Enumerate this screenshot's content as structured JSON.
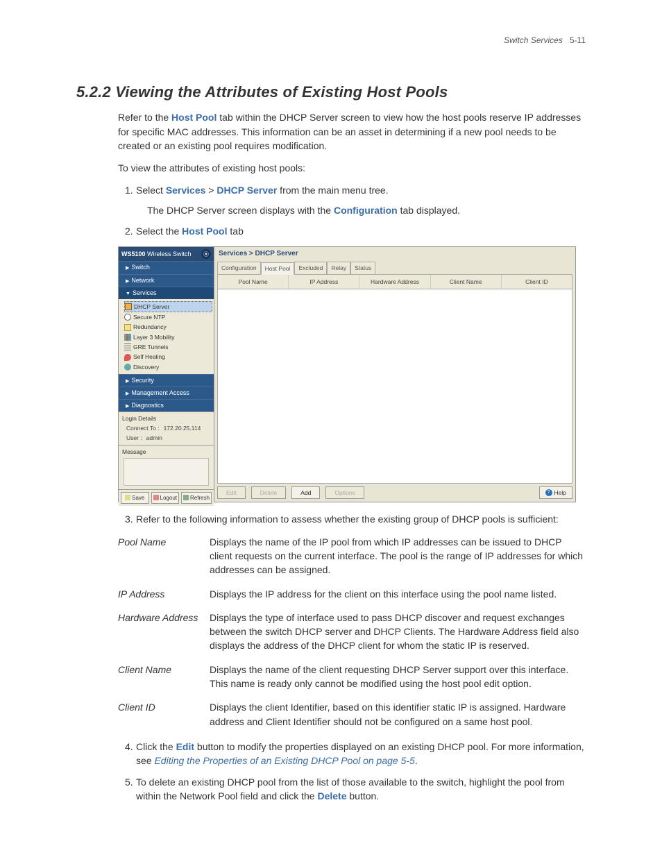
{
  "page_header": {
    "section": "Switch Services",
    "page": "5-11"
  },
  "heading": "5.2.2  Viewing the Attributes of Existing Host Pools",
  "intro": {
    "t1a": "Refer to the ",
    "host_pool": "Host Pool",
    "t1b": " tab within the DHCP Server screen to view how the host pools reserve IP addresses for specific MAC addresses. This information can be an asset in determining if a new pool needs to be created or an existing pool requires modification.",
    "t2": "To view the attributes of existing host pools:"
  },
  "step1": {
    "num": "1.",
    "a": "Select ",
    "services": "Services",
    "gt": " > ",
    "dhcp": "DHCP Server",
    "b": " from the main menu tree.",
    "sub_a": "The DHCP Server screen displays with the ",
    "config": "Configuration",
    "sub_b": " tab displayed."
  },
  "step2": {
    "num": "2.",
    "a": "Select the ",
    "host_pool": "Host Pool",
    "b": " tab"
  },
  "screenshot": {
    "title_prefix": "WS5100 ",
    "title_rest": "Wireless Switch",
    "nav": {
      "switch": "Switch",
      "network": "Network",
      "services": "Services",
      "security": "Security",
      "mgmt": "Management Access",
      "diag": "Diagnostics"
    },
    "tree": {
      "dhcp": "DHCP Server",
      "ntp": "Secure NTP",
      "redundancy": "Redundancy",
      "l3": "Layer 3 Mobility",
      "gre": "GRE Tunnels",
      "self": "Self Healing",
      "disc": "Discovery"
    },
    "login": {
      "title": "Login Details",
      "connect_lbl": "Connect To :",
      "connect_val": "172.20.25.114",
      "user_lbl": "User :",
      "user_val": "admin"
    },
    "message_lbl": "Message",
    "sb_btns": {
      "save": "Save",
      "logout": "Logout",
      "refresh": "Refresh"
    },
    "breadcrumb": "Services > DHCP Server",
    "tabs": {
      "config": "Configuration",
      "host": "Host Pool",
      "excl": "Excluded",
      "relay": "Relay",
      "status": "Status"
    },
    "columns": {
      "pool": "Pool Name",
      "ip": "IP Address",
      "hw": "Hardware Address",
      "client": "Client Name",
      "cid": "Client ID"
    },
    "bottom": {
      "edit": "Edit",
      "delete": "Delete",
      "add": "Add",
      "options": "Options",
      "help": "Help"
    }
  },
  "step3": {
    "num": "3.",
    "t": "Refer to the following information to assess whether the existing group of DHCP pools is sufficient:"
  },
  "defs": {
    "pool_name": {
      "term": "Pool Name",
      "desc": "Displays the name of the IP pool from which IP addresses can be issued to DHCP client requests on the current interface. The pool is the range of IP addresses for which addresses can be assigned."
    },
    "ip": {
      "term": "IP Address",
      "desc": "Displays the IP address for the client on this interface using the pool name listed."
    },
    "hw": {
      "term": "Hardware Address",
      "desc": "Displays the type of interface used to pass DHCP discover and request exchanges between the switch DHCP server and DHCP Clients. The Hardware Address field also displays the address of the DHCP client for whom the static IP is reserved."
    },
    "client": {
      "term": "Client Name",
      "desc": "Displays the name of the client requesting DHCP Server support over this interface. This name is ready only cannot be modified using the host pool edit option."
    },
    "cid": {
      "term": "Client ID",
      "desc": "Displays the client Identifier, based on this identifier static IP is assigned. Hardware address and Client Identifier should not be configured on a same host pool."
    }
  },
  "step4": {
    "num": "4.",
    "a": "Click the ",
    "edit": "Edit",
    "b": " button to modify the properties displayed on an existing DHCP pool. For more information, see ",
    "link": "Editing the Properties of an Existing DHCP Pool on page 5-5",
    "c": "."
  },
  "step5": {
    "num": "5.",
    "a": "To delete an existing DHCP pool from the list of those available to the switch, highlight the pool from within the Network Pool field and click the ",
    "delete": "Delete",
    "b": " button."
  }
}
